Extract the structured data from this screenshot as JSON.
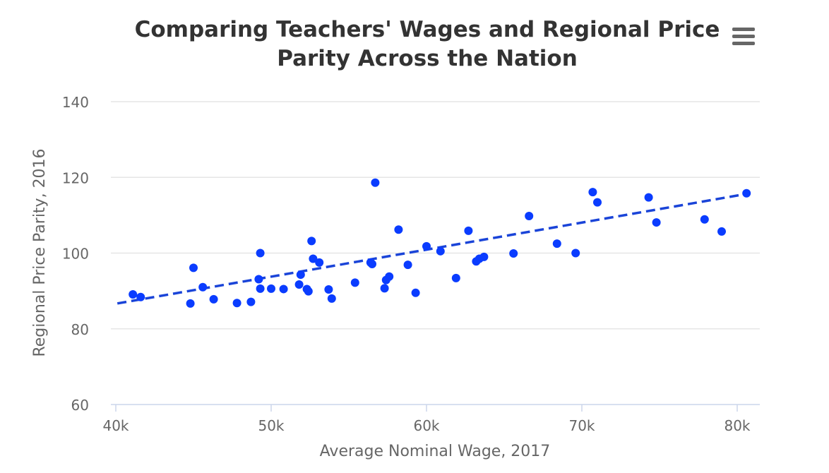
{
  "chart_data": {
    "type": "scatter",
    "title": "Comparing Teachers' Wages and Regional Price Parity Across the Nation",
    "title_lines": [
      "Comparing Teachers' Wages and Regional Price",
      "Parity Across the Nation"
    ],
    "xlabel": "Average Nominal Wage, 2017",
    "ylabel": "Regional Price Parity, 2016",
    "xlim": [
      40000,
      81500
    ],
    "ylim": [
      60,
      140
    ],
    "x_ticks": [
      40000,
      50000,
      60000,
      70000,
      80000
    ],
    "x_tick_labels": [
      "40k",
      "50k",
      "60k",
      "70k",
      "80k"
    ],
    "y_ticks": [
      60,
      80,
      100,
      120,
      140
    ],
    "y_tick_labels": [
      "60",
      "80",
      "100",
      "120",
      "140"
    ],
    "grid": "horizontal",
    "point_color": "#0a3cff",
    "trend_color": "#1a44d8",
    "trendline": {
      "x": [
        40100,
        80700
      ],
      "y": [
        86.7,
        115.7
      ],
      "style": "dashed"
    },
    "points": [
      {
        "x": 41100,
        "y": 89.1
      },
      {
        "x": 41600,
        "y": 88.4
      },
      {
        "x": 44800,
        "y": 86.7
      },
      {
        "x": 45000,
        "y": 96.1
      },
      {
        "x": 45600,
        "y": 91.0
      },
      {
        "x": 46300,
        "y": 87.8
      },
      {
        "x": 47800,
        "y": 86.8
      },
      {
        "x": 48700,
        "y": 87.1
      },
      {
        "x": 49200,
        "y": 93.1
      },
      {
        "x": 49300,
        "y": 90.6
      },
      {
        "x": 49300,
        "y": 100.0
      },
      {
        "x": 50000,
        "y": 90.6
      },
      {
        "x": 50800,
        "y": 90.5
      },
      {
        "x": 51800,
        "y": 91.7
      },
      {
        "x": 51900,
        "y": 94.3
      },
      {
        "x": 52300,
        "y": 90.5
      },
      {
        "x": 52400,
        "y": 89.9
      },
      {
        "x": 52600,
        "y": 103.2
      },
      {
        "x": 52700,
        "y": 98.5
      },
      {
        "x": 53100,
        "y": 97.5
      },
      {
        "x": 53700,
        "y": 90.4
      },
      {
        "x": 53900,
        "y": 88.0
      },
      {
        "x": 55400,
        "y": 92.2
      },
      {
        "x": 56400,
        "y": 97.5
      },
      {
        "x": 56500,
        "y": 97.1
      },
      {
        "x": 56700,
        "y": 118.6
      },
      {
        "x": 57300,
        "y": 90.7
      },
      {
        "x": 57400,
        "y": 92.9
      },
      {
        "x": 57600,
        "y": 93.8
      },
      {
        "x": 58200,
        "y": 106.2
      },
      {
        "x": 58800,
        "y": 96.9
      },
      {
        "x": 59300,
        "y": 89.5
      },
      {
        "x": 60000,
        "y": 101.8
      },
      {
        "x": 60900,
        "y": 100.5
      },
      {
        "x": 61900,
        "y": 93.4
      },
      {
        "x": 62700,
        "y": 105.9
      },
      {
        "x": 63200,
        "y": 97.8
      },
      {
        "x": 63400,
        "y": 98.5
      },
      {
        "x": 63700,
        "y": 99.0
      },
      {
        "x": 65600,
        "y": 99.9
      },
      {
        "x": 66600,
        "y": 109.8
      },
      {
        "x": 68400,
        "y": 102.5
      },
      {
        "x": 69600,
        "y": 100.0
      },
      {
        "x": 70700,
        "y": 116.1
      },
      {
        "x": 71000,
        "y": 113.4
      },
      {
        "x": 74300,
        "y": 114.7
      },
      {
        "x": 74800,
        "y": 108.1
      },
      {
        "x": 77900,
        "y": 108.9
      },
      {
        "x": 79000,
        "y": 105.7
      },
      {
        "x": 80600,
        "y": 115.8
      }
    ]
  },
  "menu": {
    "icon": "hamburger-menu-icon"
  }
}
